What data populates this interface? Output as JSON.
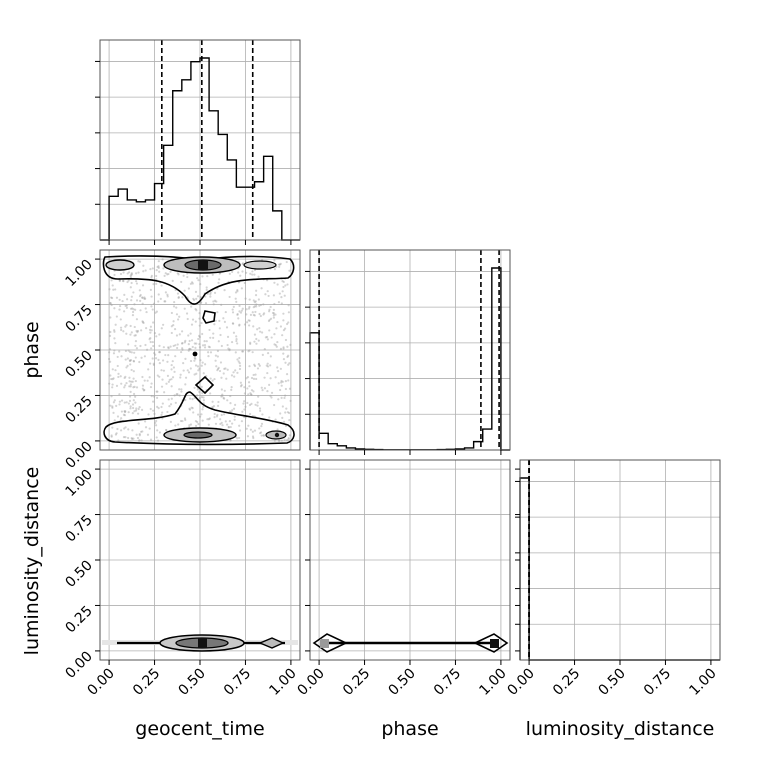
{
  "chart_data": {
    "type": "corner",
    "parameters": [
      "geocent_time",
      "phase",
      "luminosity_distance"
    ],
    "tick_labels": [
      "0.00",
      "0.25",
      "0.50",
      "0.75",
      "1.00"
    ],
    "axis_range": [
      -0.05,
      1.05
    ],
    "grid": true,
    "colors": {
      "line": "#000000",
      "grid": "#b0b0b0",
      "scatter": "#a0a0a0"
    },
    "histograms": [
      {
        "parameter": "geocent_time",
        "bin_edges": [
          -0.05,
          0.0,
          0.05,
          0.1,
          0.15,
          0.2,
          0.25,
          0.3,
          0.35,
          0.4,
          0.45,
          0.5,
          0.55,
          0.6,
          0.65,
          0.7,
          0.75,
          0.8,
          0.85,
          0.9,
          0.95,
          1.0,
          1.05
        ],
        "counts": [
          0,
          0.24,
          0.28,
          0.22,
          0.21,
          0.22,
          0.31,
          0.52,
          0.82,
          0.88,
          0.98,
          1.0,
          0.71,
          0.58,
          0.44,
          0.29,
          0.29,
          0.32,
          0.46,
          0.16,
          0,
          0
        ],
        "quantiles": [
          0.29,
          0.51,
          0.79
        ]
      },
      {
        "parameter": "phase",
        "bin_edges": [
          -0.05,
          0.0,
          0.05,
          0.1,
          0.15,
          0.2,
          0.25,
          0.3,
          0.35,
          0.4,
          0.45,
          0.5,
          0.55,
          0.6,
          0.65,
          0.7,
          0.75,
          0.8,
          0.85,
          0.9,
          0.95,
          1.0,
          1.05
        ],
        "counts": [
          0.56,
          0.08,
          0.03,
          0.02,
          0.01,
          0.005,
          0.003,
          0.002,
          0.001,
          0.001,
          0.001,
          0.001,
          0.001,
          0.001,
          0.002,
          0.003,
          0.005,
          0.01,
          0.04,
          0.1,
          0.87,
          0
        ],
        "quantiles": [
          0.0,
          0.89,
          0.99
        ]
      },
      {
        "parameter": "luminosity_distance",
        "bin_edges": [
          -0.05,
          0.0,
          0.05,
          0.1,
          0.15,
          0.2,
          0.25,
          0.3,
          0.35,
          0.4,
          0.45,
          0.5,
          0.55,
          0.6,
          0.65,
          0.7,
          0.75,
          0.8,
          0.85,
          0.9,
          0.95,
          1.0,
          1.05
        ],
        "counts": [
          1.0,
          0,
          0,
          0,
          0,
          0,
          0,
          0,
          0,
          0,
          0,
          0,
          0,
          0,
          0,
          0,
          0,
          0,
          0,
          0,
          0,
          0
        ],
        "quantiles": [
          0.0,
          0.0,
          0.0
        ]
      }
    ],
    "contours_2d": [
      {
        "x": "geocent_time",
        "y": "phase",
        "dense_bands_at": [
          0.0,
          1.0
        ],
        "peak": [
          0.52,
          1.0
        ]
      },
      {
        "x": "geocent_time",
        "y": "luminosity_distance",
        "dense_band_at": 0.0,
        "peak": [
          0.52,
          0.0
        ]
      },
      {
        "x": "phase",
        "y": "luminosity_distance",
        "dense_band_at": 0.0,
        "peaks": [
          [
            0.0,
            0.0
          ],
          [
            1.0,
            0.0
          ]
        ]
      }
    ]
  }
}
